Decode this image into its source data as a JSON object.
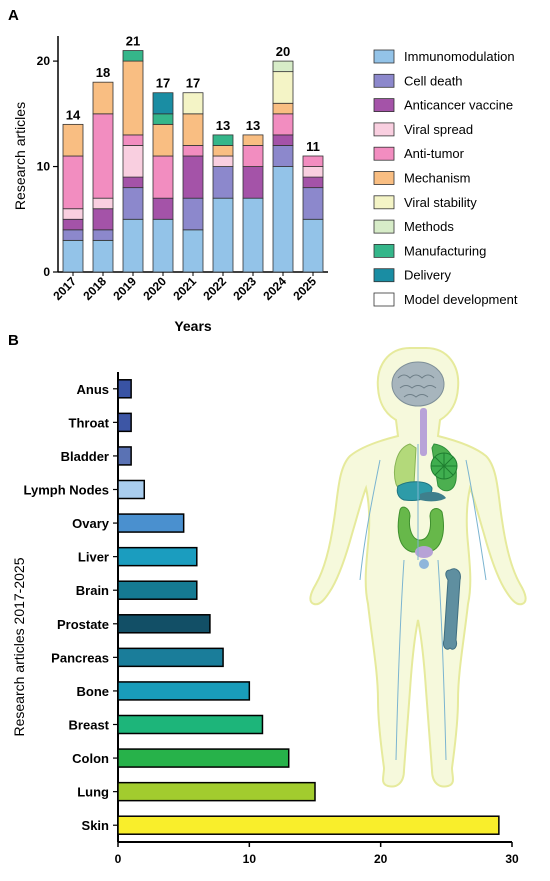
{
  "panel_a_letter": "A",
  "panel_b_letter": "B",
  "chart_data": [
    {
      "type": "bar",
      "stacked": true,
      "xlabel": "Years",
      "ylabel": "Research articles",
      "ylim": [
        0,
        22
      ],
      "yticks": [
        0,
        10,
        20
      ],
      "categories": [
        "2017",
        "2018",
        "2019",
        "2020",
        "2021",
        "2022",
        "2023",
        "2024",
        "2025"
      ],
      "totals": [
        14,
        18,
        21,
        17,
        17,
        13,
        13,
        20,
        11
      ],
      "legend_position": "right",
      "series": [
        {
          "name": "Immunomodulation",
          "color": "#93c3e8",
          "values": [
            3,
            3,
            5,
            5,
            4,
            7,
            7,
            10,
            5
          ]
        },
        {
          "name": "Cell death",
          "color": "#8c88cc",
          "values": [
            1,
            1,
            3,
            0,
            3,
            3,
            0,
            2,
            3
          ]
        },
        {
          "name": "Anticancer vaccine",
          "color": "#a453a8",
          "values": [
            1,
            2,
            1,
            2,
            4,
            0,
            3,
            1,
            1
          ]
        },
        {
          "name": "Viral spread",
          "color": "#f9cfe0",
          "values": [
            1,
            1,
            3,
            0,
            0,
            1,
            0,
            0,
            1
          ]
        },
        {
          "name": "Anti-tumor",
          "color": "#f28dc0",
          "values": [
            5,
            8,
            1,
            4,
            1,
            0,
            2,
            2,
            1
          ]
        },
        {
          "name": "Mechanism",
          "color": "#f9be82",
          "values": [
            3,
            3,
            7,
            3,
            3,
            1,
            1,
            1,
            0
          ]
        },
        {
          "name": "Viral stability",
          "color": "#f4f4c6",
          "values": [
            0,
            0,
            0,
            0,
            2,
            0,
            0,
            3,
            0
          ]
        },
        {
          "name": "Methods",
          "color": "#d7ecc8",
          "values": [
            0,
            0,
            0,
            0,
            0,
            0,
            0,
            1,
            0
          ]
        },
        {
          "name": "Manufacturing",
          "color": "#35b68a",
          "values": [
            0,
            0,
            1,
            1,
            0,
            1,
            0,
            0,
            0
          ]
        },
        {
          "name": "Delivery",
          "color": "#1a8da3",
          "values": [
            0,
            0,
            0,
            2,
            0,
            0,
            0,
            0,
            0
          ]
        },
        {
          "name": "Model development",
          "color": "#ffffff",
          "values": [
            0,
            0,
            0,
            0,
            0,
            0,
            0,
            0,
            0
          ]
        }
      ]
    },
    {
      "type": "bar",
      "orientation": "horizontal",
      "xlabel": "",
      "ylabel": "Research articles 2017-2025",
      "xlim": [
        0,
        30
      ],
      "xticks": [
        0,
        10,
        20,
        30
      ],
      "categories": [
        "Anus",
        "Throat",
        "Bladder",
        "Lymph Nodes",
        "Ovary",
        "Liver",
        "Brain",
        "Prostate",
        "Pancreas",
        "Bone",
        "Breast",
        "Colon",
        "Lung",
        "Skin"
      ],
      "values": [
        1,
        1,
        1,
        2,
        5,
        6,
        6,
        7,
        8,
        10,
        11,
        13,
        15,
        29
      ],
      "colors": [
        "#3953a4",
        "#3d56a5",
        "#5a72b4",
        "#a9cdee",
        "#4a90cf",
        "#1b9dbf",
        "#157a92",
        "#124f66",
        "#1a7d9a",
        "#199cba",
        "#1db57a",
        "#27b24a",
        "#a2cc2e",
        "#f9ee2b"
      ]
    }
  ],
  "figure": {
    "icons": [
      "human-body-anatomy-illustration"
    ]
  }
}
